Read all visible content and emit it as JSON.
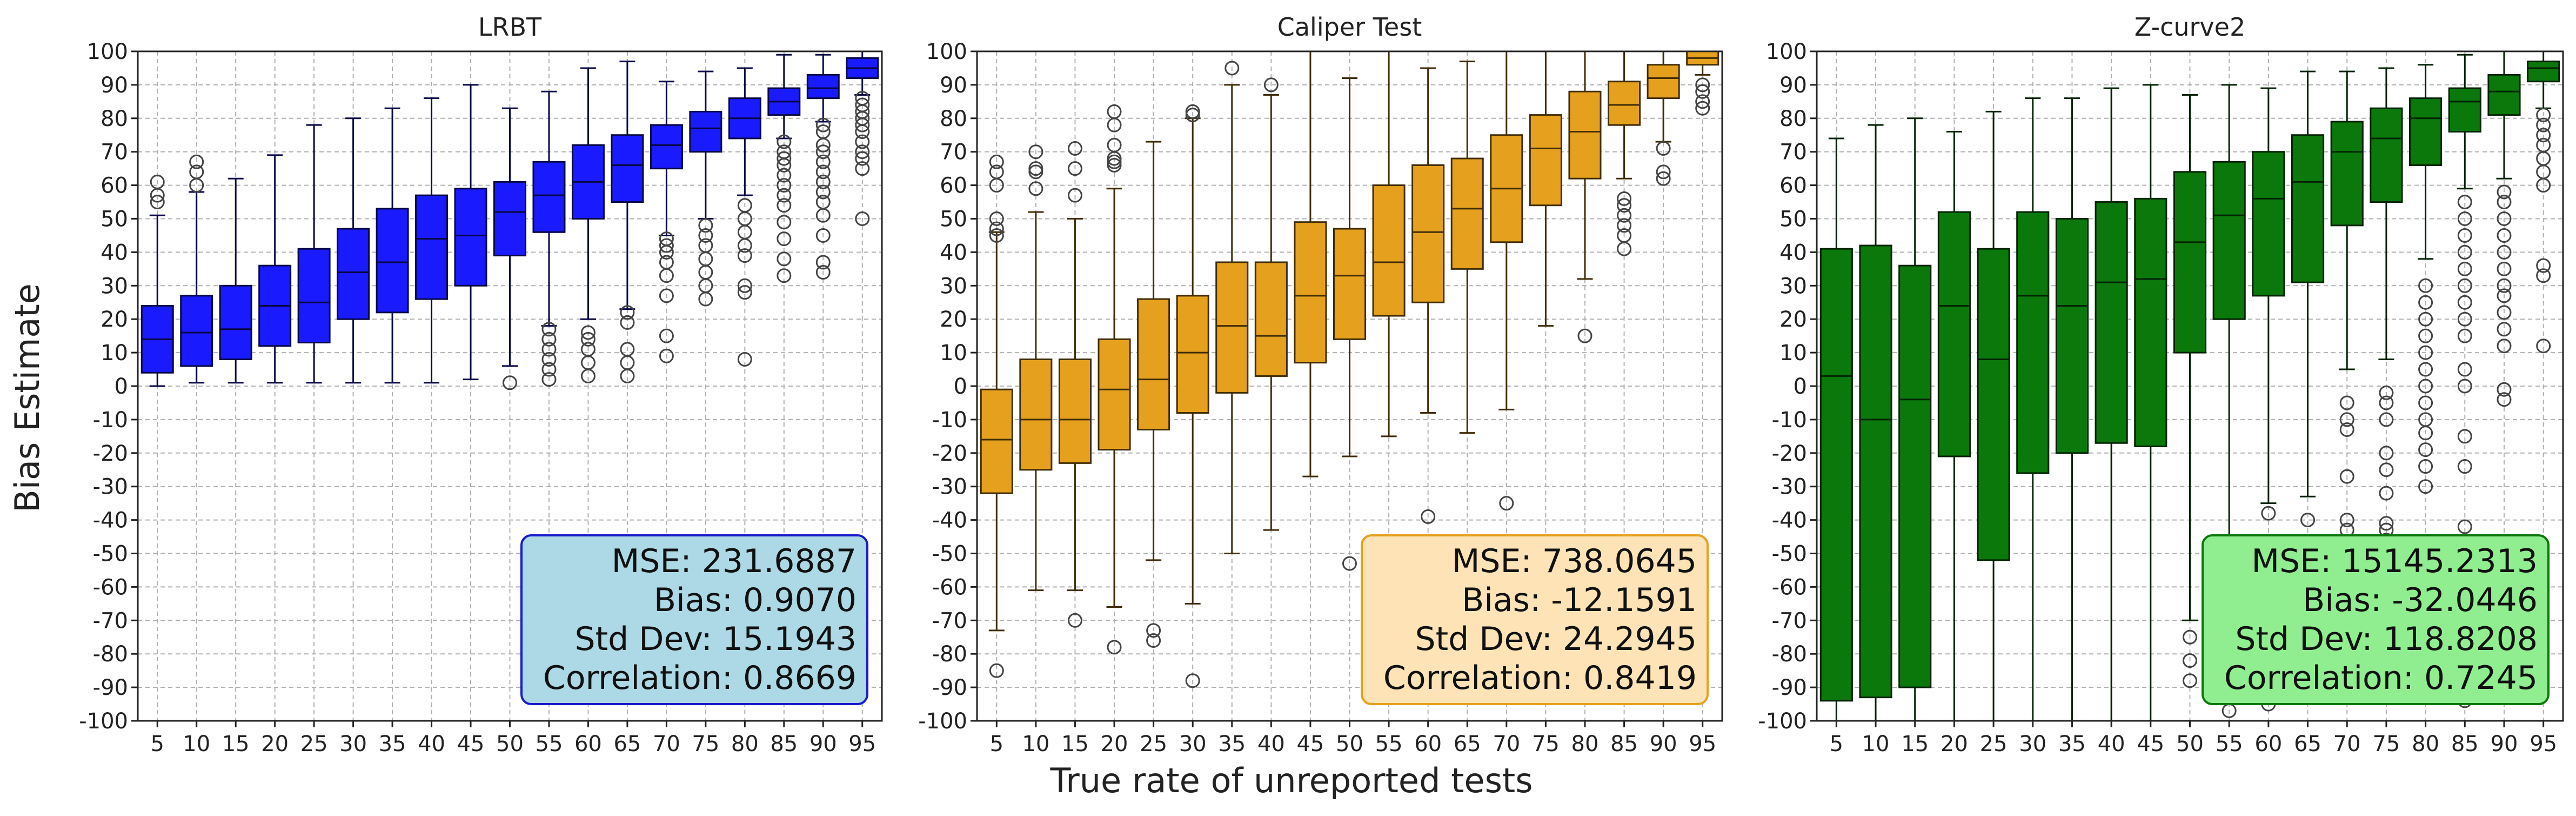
{
  "figure": {
    "ylabel": "Bias Estimate",
    "xlabel": "True rate of unreported tests"
  },
  "chart_data": [
    {
      "type": "box",
      "title": "LRBT",
      "color": "#1a1aff",
      "categories": [
        "5",
        "10",
        "15",
        "20",
        "25",
        "30",
        "35",
        "40",
        "45",
        "50",
        "55",
        "60",
        "65",
        "70",
        "75",
        "80",
        "85",
        "90",
        "95"
      ],
      "ylim": [
        -100,
        100
      ],
      "yticks": [
        100,
        90,
        80,
        70,
        60,
        50,
        40,
        30,
        20,
        10,
        0,
        -10,
        -20,
        -30,
        -40,
        -50,
        -60,
        -70,
        -80,
        -90,
        -100
      ],
      "boxes": [
        {
          "q1": 4,
          "median": 14,
          "q3": 24,
          "whisker_low": 0,
          "whisker_high": 51,
          "outliers": [
            55,
            57,
            61
          ]
        },
        {
          "q1": 6,
          "median": 16,
          "q3": 27,
          "whisker_low": 1,
          "whisker_high": 58,
          "outliers": [
            60,
            64,
            67
          ]
        },
        {
          "q1": 8,
          "median": 17,
          "q3": 30,
          "whisker_low": 1,
          "whisker_high": 62,
          "outliers": []
        },
        {
          "q1": 12,
          "median": 24,
          "q3": 36,
          "whisker_low": 1,
          "whisker_high": 69,
          "outliers": []
        },
        {
          "q1": 13,
          "median": 25,
          "q3": 41,
          "whisker_low": 1,
          "whisker_high": 78,
          "outliers": []
        },
        {
          "q1": 20,
          "median": 34,
          "q3": 47,
          "whisker_low": 1,
          "whisker_high": 80,
          "outliers": []
        },
        {
          "q1": 22,
          "median": 37,
          "q3": 53,
          "whisker_low": 1,
          "whisker_high": 83,
          "outliers": []
        },
        {
          "q1": 26,
          "median": 44,
          "q3": 57,
          "whisker_low": 1,
          "whisker_high": 86,
          "outliers": []
        },
        {
          "q1": 30,
          "median": 45,
          "q3": 59,
          "whisker_low": 2,
          "whisker_high": 90,
          "outliers": []
        },
        {
          "q1": 39,
          "median": 52,
          "q3": 61,
          "whisker_low": 6,
          "whisker_high": 83,
          "outliers": [
            1
          ]
        },
        {
          "q1": 46,
          "median": 57,
          "q3": 67,
          "whisker_low": 18,
          "whisker_high": 88,
          "outliers": [
            2,
            5,
            8,
            11,
            14,
            17
          ]
        },
        {
          "q1": 50,
          "median": 61,
          "q3": 72,
          "whisker_low": 20,
          "whisker_high": 95,
          "outliers": [
            3,
            7,
            11,
            14,
            16
          ]
        },
        {
          "q1": 55,
          "median": 66,
          "q3": 75,
          "whisker_low": 23,
          "whisker_high": 97,
          "outliers": [
            3,
            7,
            11,
            19,
            22
          ]
        },
        {
          "q1": 65,
          "median": 72,
          "q3": 78,
          "whisker_low": 45,
          "whisker_high": 91,
          "outliers": [
            9,
            15,
            27,
            33,
            37,
            40,
            42,
            44
          ]
        },
        {
          "q1": 70,
          "median": 77,
          "q3": 82,
          "whisker_low": 50,
          "whisker_high": 94,
          "outliers": [
            26,
            30,
            34,
            38,
            42,
            45,
            48
          ]
        },
        {
          "q1": 74,
          "median": 80,
          "q3": 86,
          "whisker_low": 57,
          "whisker_high": 95,
          "outliers": [
            8,
            28,
            30,
            39,
            42,
            46,
            50,
            54
          ]
        },
        {
          "q1": 81,
          "median": 85,
          "q3": 89,
          "whisker_low": 74,
          "whisker_high": 99,
          "outliers": [
            33,
            38,
            44,
            49,
            54,
            57,
            60,
            63,
            66,
            68,
            70,
            73
          ]
        },
        {
          "q1": 86,
          "median": 89,
          "q3": 93,
          "whisker_low": 79,
          "whisker_high": 99,
          "outliers": [
            34,
            37,
            45,
            51,
            55,
            58,
            61,
            64,
            67,
            70,
            72,
            76,
            78
          ]
        },
        {
          "q1": 92,
          "median": 95,
          "q3": 98,
          "whisker_low": 87,
          "whisker_high": 100,
          "outliers": [
            50,
            65,
            68,
            70,
            73,
            76,
            78,
            80,
            82,
            84,
            86
          ]
        }
      ],
      "stats": {
        "mse": "MSE: 231.6887",
        "bias": "Bias: 0.9070",
        "std": "Std Dev: 15.1943",
        "corr": "Correlation: 0.8669",
        "bg": "#add8e6",
        "border": "#1a1acc"
      }
    },
    {
      "type": "box",
      "title": "Caliper Test",
      "color": "#e5a11e",
      "categories": [
        "5",
        "10",
        "15",
        "20",
        "25",
        "30",
        "35",
        "40",
        "45",
        "50",
        "55",
        "60",
        "65",
        "70",
        "75",
        "80",
        "85",
        "90",
        "95"
      ],
      "ylim": [
        -100,
        100
      ],
      "yticks": [
        100,
        90,
        80,
        70,
        60,
        50,
        40,
        30,
        20,
        10,
        0,
        -10,
        -20,
        -30,
        -40,
        -50,
        -60,
        -70,
        -80,
        -90,
        -100
      ],
      "boxes": [
        {
          "q1": -32,
          "median": -16,
          "q3": -1,
          "whisker_low": -73,
          "whisker_high": 46,
          "outliers": [
            -85,
            45,
            47,
            50,
            60,
            64,
            67
          ]
        },
        {
          "q1": -25,
          "median": -10,
          "q3": 8,
          "whisker_low": -61,
          "whisker_high": 52,
          "outliers": [
            59,
            64,
            65,
            70
          ]
        },
        {
          "q1": -23,
          "median": -10,
          "q3": 8,
          "whisker_low": -61,
          "whisker_high": 50,
          "outliers": [
            -70,
            57,
            65,
            71
          ]
        },
        {
          "q1": -19,
          "median": -1,
          "q3": 14,
          "whisker_low": -66,
          "whisker_high": 59,
          "outliers": [
            -78,
            66,
            67,
            68,
            72,
            78,
            82
          ]
        },
        {
          "q1": -13,
          "median": 2,
          "q3": 26,
          "whisker_low": -52,
          "whisker_high": 73,
          "outliers": [
            -73,
            -76
          ]
        },
        {
          "q1": -8,
          "median": 10,
          "q3": 27,
          "whisker_low": -65,
          "whisker_high": 80,
          "outliers": [
            -88,
            81,
            82
          ]
        },
        {
          "q1": -2,
          "median": 18,
          "q3": 37,
          "whisker_low": -50,
          "whisker_high": 90,
          "outliers": [
            95
          ]
        },
        {
          "q1": 3,
          "median": 15,
          "q3": 37,
          "whisker_low": -43,
          "whisker_high": 87,
          "outliers": [
            90
          ]
        },
        {
          "q1": 7,
          "median": 27,
          "q3": 49,
          "whisker_low": -27,
          "whisker_high": 100,
          "outliers": []
        },
        {
          "q1": 14,
          "median": 33,
          "q3": 47,
          "whisker_low": -21,
          "whisker_high": 92,
          "outliers": [
            -53
          ]
        },
        {
          "q1": 21,
          "median": 37,
          "q3": 60,
          "whisker_low": -15,
          "whisker_high": 100,
          "outliers": []
        },
        {
          "q1": 25,
          "median": 46,
          "q3": 66,
          "whisker_low": -8,
          "whisker_high": 95,
          "outliers": [
            -39
          ]
        },
        {
          "q1": 35,
          "median": 53,
          "q3": 68,
          "whisker_low": -14,
          "whisker_high": 97,
          "outliers": []
        },
        {
          "q1": 43,
          "median": 59,
          "q3": 75,
          "whisker_low": -7,
          "whisker_high": 100,
          "outliers": [
            -35
          ]
        },
        {
          "q1": 54,
          "median": 71,
          "q3": 81,
          "whisker_low": 18,
          "whisker_high": 100,
          "outliers": []
        },
        {
          "q1": 62,
          "median": 76,
          "q3": 88,
          "whisker_low": 32,
          "whisker_high": 100,
          "outliers": [
            15
          ]
        },
        {
          "q1": 78,
          "median": 84,
          "q3": 91,
          "whisker_low": 62,
          "whisker_high": 100,
          "outliers": [
            41,
            45,
            48,
            51,
            54,
            56
          ]
        },
        {
          "q1": 86,
          "median": 92,
          "q3": 96,
          "whisker_low": 73,
          "whisker_high": 100,
          "outliers": [
            62,
            64,
            71
          ]
        },
        {
          "q1": 96,
          "median": 98,
          "q3": 100,
          "whisker_low": 93,
          "whisker_high": 100,
          "outliers": [
            83,
            85,
            88,
            90
          ]
        }
      ],
      "stats": {
        "mse": "MSE: 738.0645",
        "bias": "Bias: -12.1591",
        "std": "Std Dev: 24.2945",
        "corr": "Correlation: 0.8419",
        "bg": "#fde3b5",
        "border": "#e5a11e"
      }
    },
    {
      "type": "box",
      "title": "Z-curve2",
      "color": "#0a780a",
      "categories": [
        "5",
        "10",
        "15",
        "20",
        "25",
        "30",
        "35",
        "40",
        "45",
        "50",
        "55",
        "60",
        "65",
        "70",
        "75",
        "80",
        "85",
        "90",
        "95"
      ],
      "ylim": [
        -100,
        100
      ],
      "yticks": [
        100,
        90,
        80,
        70,
        60,
        50,
        40,
        30,
        20,
        10,
        0,
        -10,
        -20,
        -30,
        -40,
        -50,
        -60,
        -70,
        -80,
        -90,
        -100
      ],
      "boxes": [
        {
          "q1": -94,
          "median": 3,
          "q3": 41,
          "whisker_low": -100,
          "whisker_high": 74,
          "outliers": []
        },
        {
          "q1": -93,
          "median": -10,
          "q3": 42,
          "whisker_low": -100,
          "whisker_high": 78,
          "outliers": []
        },
        {
          "q1": -90,
          "median": -4,
          "q3": 36,
          "whisker_low": -100,
          "whisker_high": 80,
          "outliers": []
        },
        {
          "q1": -21,
          "median": 24,
          "q3": 52,
          "whisker_low": -100,
          "whisker_high": 76,
          "outliers": []
        },
        {
          "q1": -52,
          "median": 8,
          "q3": 41,
          "whisker_low": -100,
          "whisker_high": 82,
          "outliers": []
        },
        {
          "q1": -26,
          "median": 27,
          "q3": 52,
          "whisker_low": -100,
          "whisker_high": 86,
          "outliers": []
        },
        {
          "q1": -20,
          "median": 24,
          "q3": 50,
          "whisker_low": -100,
          "whisker_high": 86,
          "outliers": []
        },
        {
          "q1": -17,
          "median": 31,
          "q3": 55,
          "whisker_low": -100,
          "whisker_high": 89,
          "outliers": []
        },
        {
          "q1": -18,
          "median": 32,
          "q3": 56,
          "whisker_low": -100,
          "whisker_high": 90,
          "outliers": []
        },
        {
          "q1": 10,
          "median": 43,
          "q3": 64,
          "whisker_low": -70,
          "whisker_high": 87,
          "outliers": [
            -75,
            -82,
            -88
          ]
        },
        {
          "q1": 20,
          "median": 51,
          "q3": 67,
          "whisker_low": -78,
          "whisker_high": 90,
          "outliers": [
            -97
          ]
        },
        {
          "q1": 27,
          "median": 56,
          "q3": 70,
          "whisker_low": -35,
          "whisker_high": 89,
          "outliers": [
            -38,
            -95
          ]
        },
        {
          "q1": 31,
          "median": 61,
          "q3": 75,
          "whisker_low": -33,
          "whisker_high": 94,
          "outliers": [
            -40,
            -63,
            -92
          ]
        },
        {
          "q1": 48,
          "median": 70,
          "q3": 79,
          "whisker_low": 5,
          "whisker_high": 94,
          "outliers": [
            -5,
            -10,
            -13,
            -27,
            -40,
            -43,
            -47,
            -55
          ]
        },
        {
          "q1": 55,
          "median": 74,
          "q3": 83,
          "whisker_low": 8,
          "whisker_high": 95,
          "outliers": [
            -2,
            -5,
            -10,
            -20,
            -25,
            -32,
            -41,
            -43,
            -46,
            -50
          ]
        },
        {
          "q1": 66,
          "median": 80,
          "q3": 86,
          "whisker_low": 38,
          "whisker_high": 96,
          "outliers": [
            -30,
            -24,
            -19,
            -14,
            -10,
            -5,
            0,
            5,
            10,
            15,
            20,
            25,
            30
          ]
        },
        {
          "q1": 76,
          "median": 85,
          "q3": 89,
          "whisker_low": 59,
          "whisker_high": 99,
          "outliers": [
            -94,
            -42,
            -24,
            -15,
            0,
            5,
            15,
            20,
            25,
            30,
            35,
            40,
            45,
            50,
            55
          ]
        },
        {
          "q1": 81,
          "median": 88,
          "q3": 93,
          "whisker_low": 62,
          "whisker_high": 100,
          "outliers": [
            -4,
            -1,
            12,
            17,
            22,
            27,
            30,
            35,
            40,
            45,
            50,
            55,
            58
          ]
        },
        {
          "q1": 91,
          "median": 95,
          "q3": 97,
          "whisker_low": 83,
          "whisker_high": 100,
          "outliers": [
            12,
            33,
            36,
            60,
            64,
            68,
            72,
            75,
            78,
            81
          ]
        }
      ],
      "stats": {
        "mse": "MSE: 15145.2313",
        "bias": "Bias: -32.0446",
        "std": "Std Dev: 118.8208",
        "corr": "Correlation: 0.7245",
        "bg": "#90ee90",
        "border": "#0a780a"
      }
    }
  ]
}
